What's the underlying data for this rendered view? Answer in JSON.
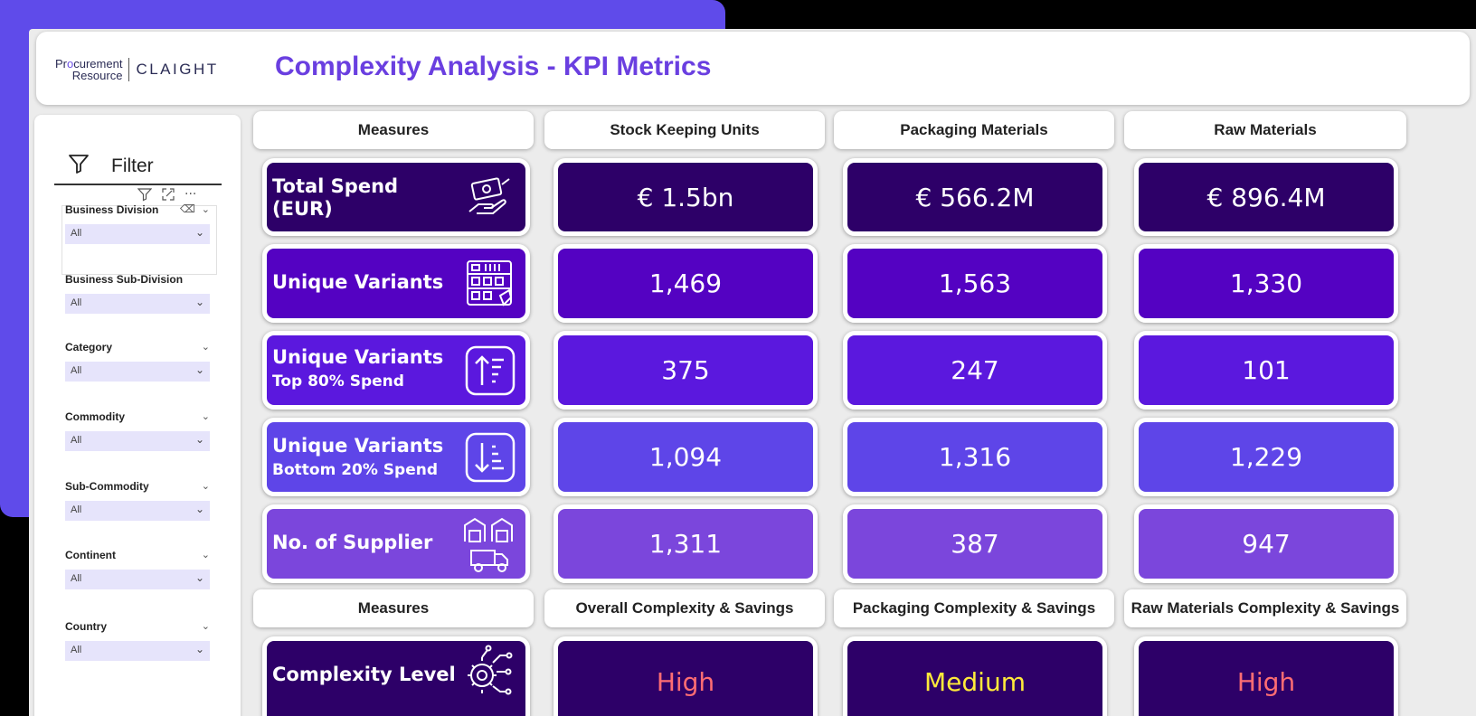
{
  "app": {
    "logo_procurement": "Pr",
    "logo_o": "o",
    "logo_curement": "curement",
    "logo_resource": "Resource",
    "logo_claight": "CLAIGHT",
    "title": "Complexity Analysis - KPI Metrics"
  },
  "filter": {
    "label": "Filter",
    "more": "···",
    "slicers": [
      {
        "label": "Business Division",
        "value": "All"
      },
      {
        "label": "Business Sub-Division",
        "value": "All"
      },
      {
        "label": "Category",
        "value": "All"
      },
      {
        "label": "Commodity",
        "value": "All"
      },
      {
        "label": "Sub-Commodity",
        "value": "All"
      },
      {
        "label": "Continent",
        "value": "All"
      },
      {
        "label": "Country",
        "value": "All"
      }
    ]
  },
  "headers": {
    "top": [
      "Measures",
      "Stock Keeping Units",
      "Packaging Materials",
      "Raw Materials"
    ],
    "bottom": [
      "Measures",
      "Overall Complexity & Savings",
      "Packaging Complexity & Savings",
      "Raw Materials Complexity & Savings"
    ]
  },
  "rows": [
    {
      "line1": "Total Spend",
      "line2": "(EUR)",
      "icon": "money-hand-icon",
      "values": [
        "€ 1.5bn",
        "€ 566.2M",
        "€ 896.4M"
      ]
    },
    {
      "line1": "Unique Variants",
      "line2": "",
      "icon": "variants-grid-icon",
      "values": [
        "1,469",
        "1,563",
        "1,330"
      ]
    },
    {
      "line1": "Unique Variants",
      "line2": "Top 80% Spend",
      "icon": "sort-up-icon",
      "values": [
        "375",
        "247",
        "101"
      ]
    },
    {
      "line1": "Unique Variants",
      "line2": "Bottom 20% Spend",
      "icon": "sort-down-icon",
      "values": [
        "1,094",
        "1,316",
        "1,229"
      ]
    },
    {
      "line1": "No. of Supplier",
      "line2": "",
      "icon": "warehouse-truck-icon",
      "values": [
        "1,311",
        "387",
        "947"
      ]
    },
    {
      "line1": "Complexity Level",
      "line2": "",
      "icon": "circuit-gear-icon",
      "values": [
        "High",
        "Medium",
        "High"
      ]
    }
  ],
  "colors": {
    "accent": "#6a3fe0",
    "background": "#5f4bea",
    "high": "#ff6d73",
    "medium": "#ffea3a"
  }
}
